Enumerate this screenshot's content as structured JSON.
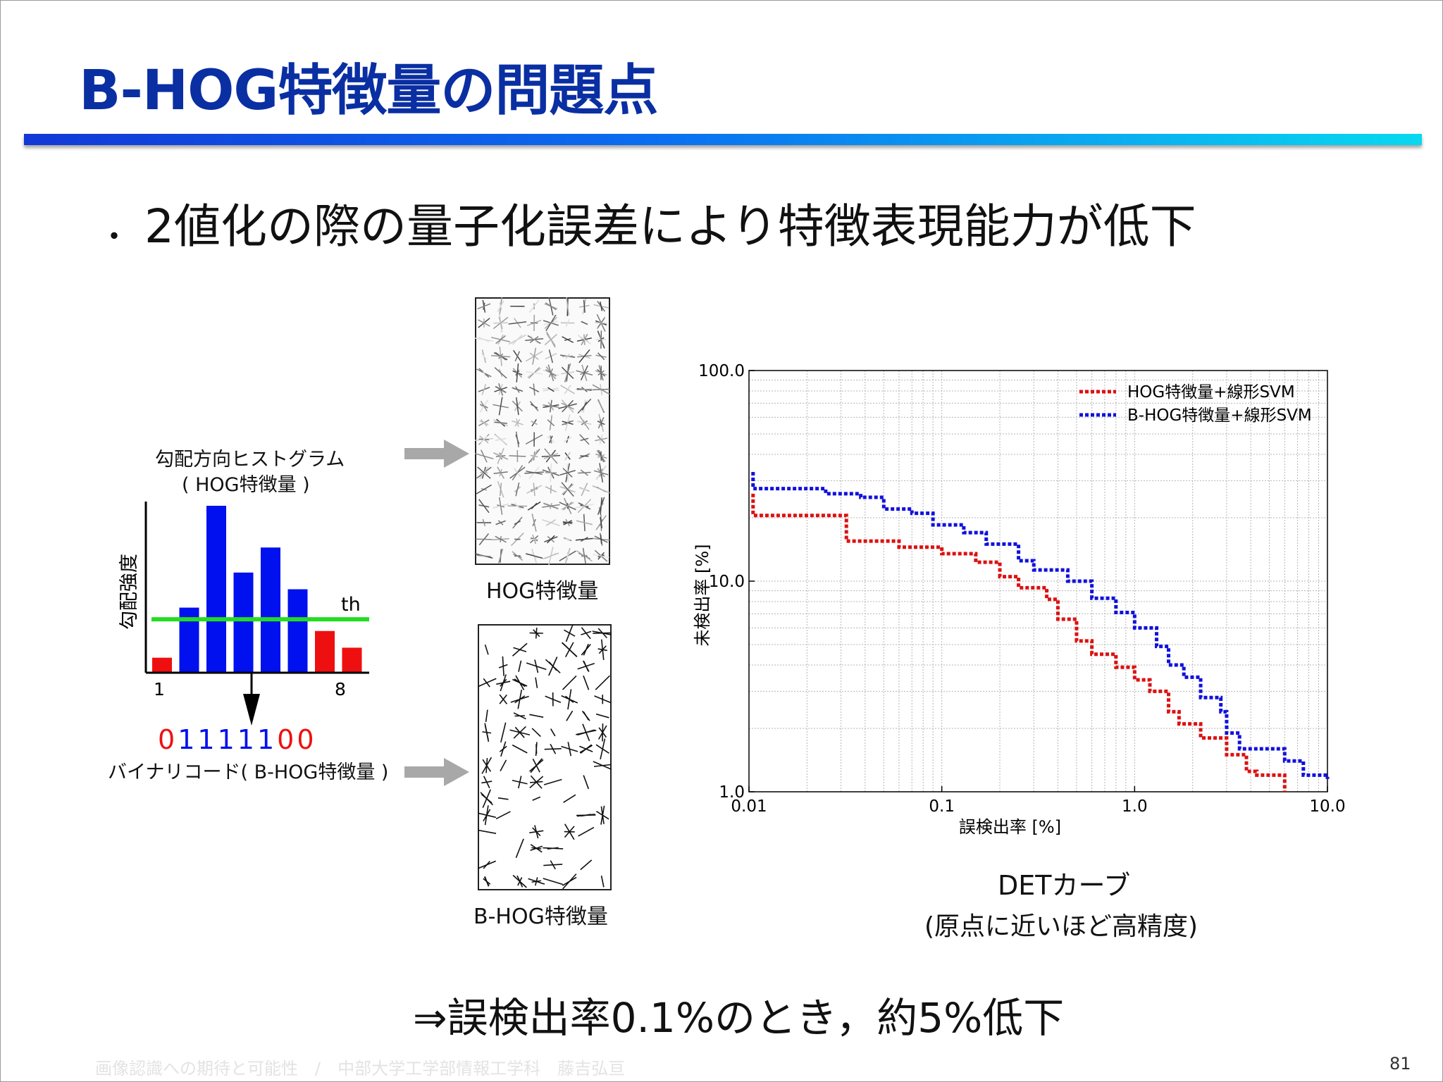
{
  "slide": {
    "title": "B-HOG特徴量の問題点",
    "bullet": "2値化の際の量子化誤差により特徴表現能力が低下",
    "conclusion": "⇒誤検出率0.1%のとき，約5%低下",
    "footer": "画像認識への期待と可能性　/　中部大学工学部情報工学科　藤吉弘亘",
    "page_number": "81"
  },
  "histogram": {
    "title_line1": "勾配方向ヒストグラム",
    "title_line2": "( HOG特徴量 )",
    "ylabel": "勾配強度",
    "threshold_label": "th",
    "x_start_label": "1",
    "x_end_label": "8",
    "bins": [
      {
        "value": 0.09,
        "above": false
      },
      {
        "value": 0.39,
        "above": true
      },
      {
        "value": 1.0,
        "above": true
      },
      {
        "value": 0.6,
        "above": true
      },
      {
        "value": 0.75,
        "above": true
      },
      {
        "value": 0.5,
        "above": true
      },
      {
        "value": 0.25,
        "above": false
      },
      {
        "value": 0.15,
        "above": false
      }
    ],
    "threshold": 0.32,
    "code_bits": [
      "0",
      "1",
      "1",
      "1",
      "1",
      "1",
      "0",
      "0"
    ],
    "code_label": "バイナリコード( B-HOG特徴量 )",
    "colors": {
      "above": "#0010ee",
      "below": "#ee1010",
      "threshold": "#22dd22"
    }
  },
  "visualizations": {
    "hog_label": "HOG特徴量",
    "bhog_label": "B-HOG特徴量"
  },
  "chart_data": {
    "type": "line",
    "xscale": "log",
    "yscale": "log",
    "xlim": [
      0.01,
      10.0
    ],
    "ylim": [
      1.0,
      100.0
    ],
    "xticks": [
      "0.01",
      "0.1",
      "1.0",
      "10.0"
    ],
    "yticks": [
      "1.0",
      "10.0",
      "100.0"
    ],
    "xlabel": "誤検出率 [%]",
    "ylabel": "未検出率 [%]",
    "grid": true,
    "legend_position": "top-right",
    "series": [
      {
        "name": "HOG特徴量+線形SVM",
        "color": "#dd1111",
        "points": [
          [
            0.0105,
            26
          ],
          [
            0.0105,
            20.5
          ],
          [
            0.032,
            20.5
          ],
          [
            0.032,
            15.5
          ],
          [
            0.06,
            14.5
          ],
          [
            0.1,
            13.5
          ],
          [
            0.15,
            12.3
          ],
          [
            0.2,
            10.5
          ],
          [
            0.25,
            9.3
          ],
          [
            0.35,
            8.2
          ],
          [
            0.4,
            6.6
          ],
          [
            0.5,
            5.2
          ],
          [
            0.6,
            4.5
          ],
          [
            0.8,
            3.9
          ],
          [
            1.0,
            3.4
          ],
          [
            1.2,
            3.0
          ],
          [
            1.5,
            2.4
          ],
          [
            1.7,
            2.1
          ],
          [
            2.2,
            1.8
          ],
          [
            3.0,
            1.5
          ],
          [
            3.8,
            1.25
          ],
          [
            4.3,
            1.2
          ],
          [
            5.8,
            1.2
          ],
          [
            6.0,
            1.0
          ]
        ]
      },
      {
        "name": "B-HOG特徴量+線形SVM",
        "color": "#1111dd",
        "points": [
          [
            0.0105,
            33
          ],
          [
            0.0105,
            27.5
          ],
          [
            0.025,
            26
          ],
          [
            0.038,
            25
          ],
          [
            0.05,
            22
          ],
          [
            0.07,
            21
          ],
          [
            0.09,
            18.5
          ],
          [
            0.13,
            17
          ],
          [
            0.17,
            15
          ],
          [
            0.25,
            12.5
          ],
          [
            0.3,
            11.3
          ],
          [
            0.45,
            10
          ],
          [
            0.6,
            8.3
          ],
          [
            0.8,
            7.1
          ],
          [
            1.0,
            6
          ],
          [
            1.3,
            4.9
          ],
          [
            1.5,
            4
          ],
          [
            1.8,
            3.5
          ],
          [
            2.2,
            2.8
          ],
          [
            2.8,
            2.4
          ],
          [
            3.0,
            1.9
          ],
          [
            3.5,
            1.6
          ],
          [
            5.0,
            1.6
          ],
          [
            6.0,
            1.4
          ],
          [
            7.5,
            1.2
          ],
          [
            10.0,
            1.15
          ]
        ]
      }
    ]
  },
  "det": {
    "caption_line1": "DETカーブ",
    "caption_line2": "(原点に近いほど高精度)"
  }
}
